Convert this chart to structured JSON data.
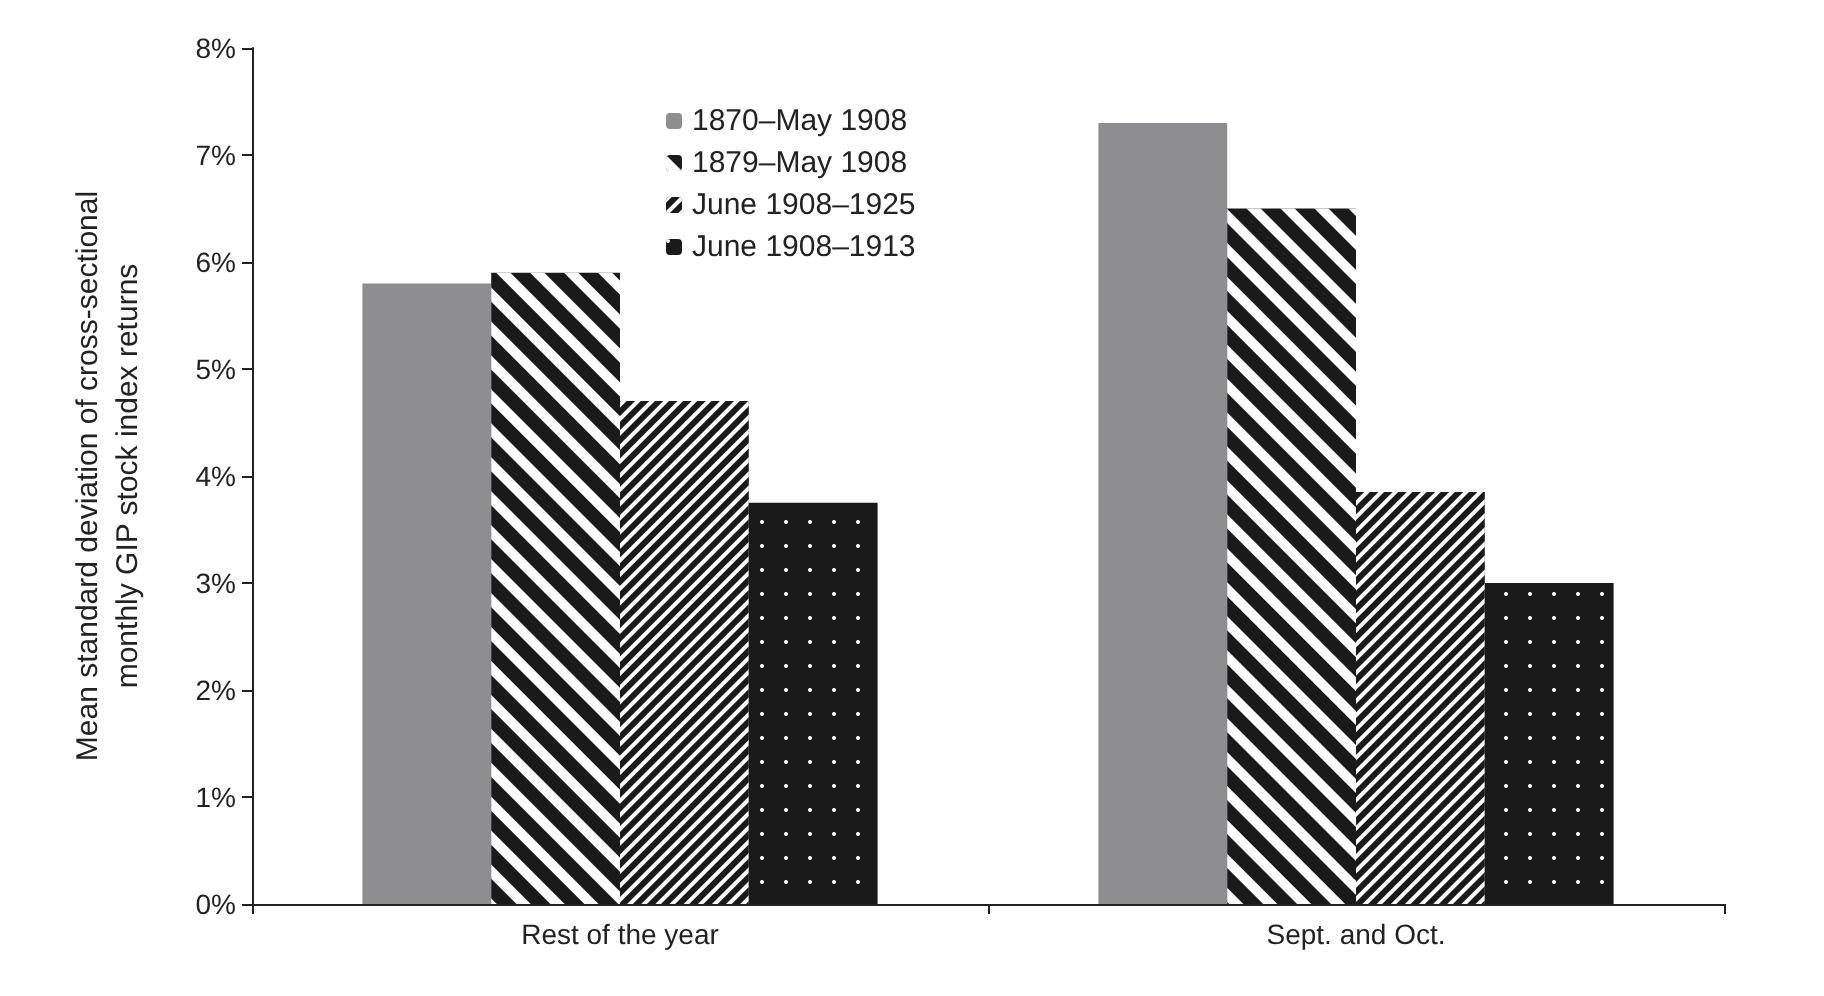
{
  "chart_data": {
    "type": "bar",
    "ylabel": "Mean standard deviation of cross-sectional monthly GIP stock index returns",
    "categories": [
      "Rest of the year",
      "Sept. and Oct."
    ],
    "series": [
      {
        "name": "1870–May 1908",
        "color": "#8e8e90",
        "values": [
          5.8,
          7.3
        ]
      },
      {
        "name": "1879–May 1908",
        "color": "#1a1a1a",
        "values": [
          5.9,
          6.5
        ]
      },
      {
        "name": "June 1908–1925",
        "color": "#1a1a1a",
        "values": [
          4.7,
          3.85
        ]
      },
      {
        "name": "June 1908–1913",
        "color": "#1a1a1a",
        "values": [
          3.75,
          3.0
        ]
      }
    ],
    "ylim": [
      0,
      8
    ],
    "yticks": [
      {
        "value": 0,
        "label": "0%"
      },
      {
        "value": 1,
        "label": "1%"
      },
      {
        "value": 2,
        "label": "2%"
      },
      {
        "value": 3,
        "label": "3%"
      },
      {
        "value": 4,
        "label": "4%"
      },
      {
        "value": 5,
        "label": "5%"
      },
      {
        "value": 6,
        "label": "6%"
      },
      {
        "value": 7,
        "label": "7%"
      },
      {
        "value": 8,
        "label": "8%"
      }
    ],
    "grid": false,
    "legend": "top"
  }
}
